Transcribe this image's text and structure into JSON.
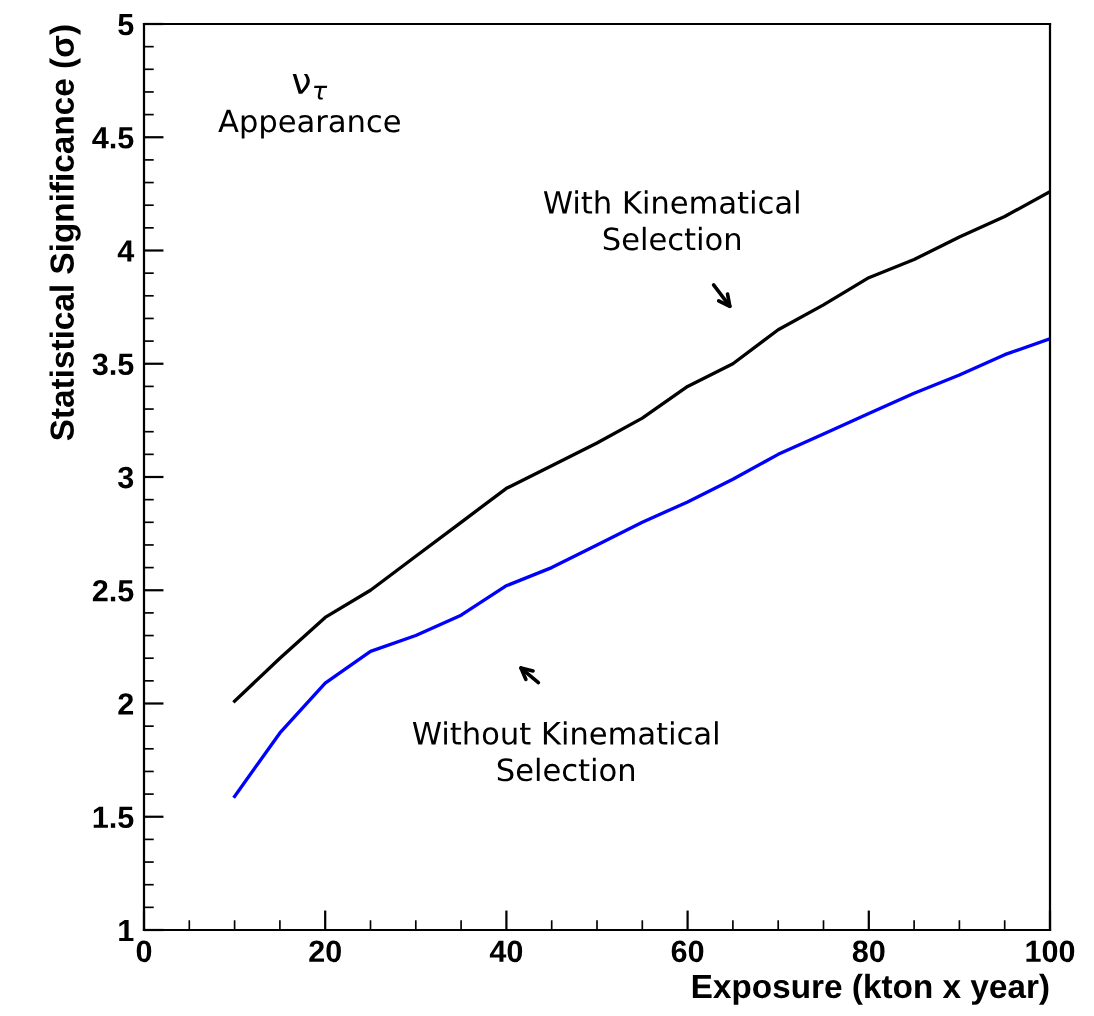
{
  "chart_data": {
    "type": "line",
    "xlabel": "Exposure (kton x year)",
    "ylabel": "Statistical Significance (σ)",
    "x": [
      10,
      15,
      20,
      25,
      30,
      35,
      40,
      45,
      50,
      55,
      60,
      65,
      70,
      75,
      80,
      85,
      90,
      95,
      100
    ],
    "series": [
      {
        "color": "#000000",
        "values": [
          2.01,
          2.2,
          2.38,
          2.5,
          2.65,
          2.8,
          2.95,
          3.05,
          3.15,
          3.26,
          3.4,
          3.5,
          3.65,
          3.76,
          3.88,
          3.96,
          4.06,
          4.15,
          4.26
        ]
      },
      {
        "color": "#0000ff",
        "values": [
          1.59,
          1.87,
          2.09,
          2.23,
          2.3,
          2.39,
          2.52,
          2.6,
          2.7,
          2.8,
          2.89,
          2.99,
          3.1,
          3.19,
          3.28,
          3.37,
          3.45,
          3.54,
          3.61
        ]
      }
    ],
    "xlim": [
      0,
      100
    ],
    "ylim": [
      1,
      5
    ],
    "xticks": [
      0,
      20,
      40,
      60,
      80,
      100
    ],
    "yticks": [
      1,
      1.5,
      2,
      2.5,
      3,
      3.5,
      4,
      4.5,
      5
    ],
    "grid": false,
    "legend": false,
    "marker": "none",
    "line_style": "solid",
    "annotations": [
      "ν$_{τ}$",
      "Appearance",
      "With Kinematical\nSelection",
      "Without Kinematical\nSelection"
    ]
  }
}
